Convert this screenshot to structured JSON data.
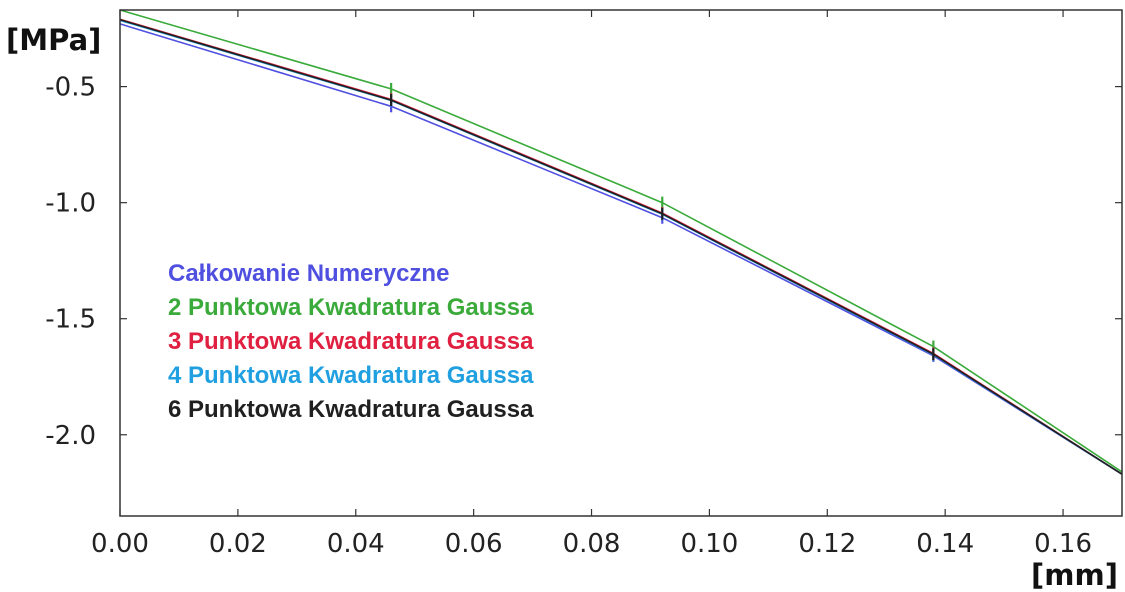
{
  "chart_data": {
    "type": "line",
    "title": "",
    "xlabel": "[mm]",
    "ylabel": "[MPa]",
    "xlim": [
      0.0,
      0.17
    ],
    "ylim": [
      -2.35,
      -0.17
    ],
    "xticks": [
      0.0,
      0.02,
      0.04,
      0.06,
      0.08,
      0.1,
      0.12,
      0.14,
      0.16
    ],
    "xtick_labels": [
      "0.00",
      "0.02",
      "0.04",
      "0.06",
      "0.08",
      "0.10",
      "0.12",
      "0.14",
      "0.16"
    ],
    "yticks": [
      -0.5,
      -1.0,
      -1.5,
      -2.0
    ],
    "ytick_labels": [
      "-0.5",
      "-1.0",
      "-1.5",
      "-2.0"
    ],
    "grid": false,
    "legend_position": "center-left",
    "series": [
      {
        "name": "Całkowanie Numeryczne",
        "color": "#5050e0",
        "x": [
          0.0,
          0.046,
          0.092,
          0.138,
          0.17
        ],
        "y": [
          -0.23,
          -0.585,
          -1.065,
          -1.66,
          -2.17
        ]
      },
      {
        "name": "2 Punktowa Kwadratura Gaussa",
        "color": "#3aaa3a",
        "x": [
          0.0,
          0.046,
          0.092,
          0.138,
          0.17
        ],
        "y": [
          -0.17,
          -0.51,
          -1.0,
          -1.62,
          -2.16
        ]
      },
      {
        "name": "3 Punktowa Kwadratura Gaussa",
        "color": "#e02040",
        "x": [
          0.0,
          0.046,
          0.092,
          0.138,
          0.17
        ],
        "y": [
          -0.21,
          -0.555,
          -1.045,
          -1.65,
          -2.17
        ]
      },
      {
        "name": "4 Punktowa Kwadratura Gaussa",
        "color": "#20a0e0",
        "x": [
          0.0,
          0.046,
          0.092,
          0.138,
          0.17
        ],
        "y": [
          -0.215,
          -0.56,
          -1.05,
          -1.655,
          -2.17
        ]
      },
      {
        "name": "6 Punktowa Kwadratura Gaussa",
        "color": "#202020",
        "x": [
          0.0,
          0.046,
          0.092,
          0.138,
          0.17
        ],
        "y": [
          -0.212,
          -0.558,
          -1.048,
          -1.653,
          -2.17
        ]
      }
    ]
  }
}
